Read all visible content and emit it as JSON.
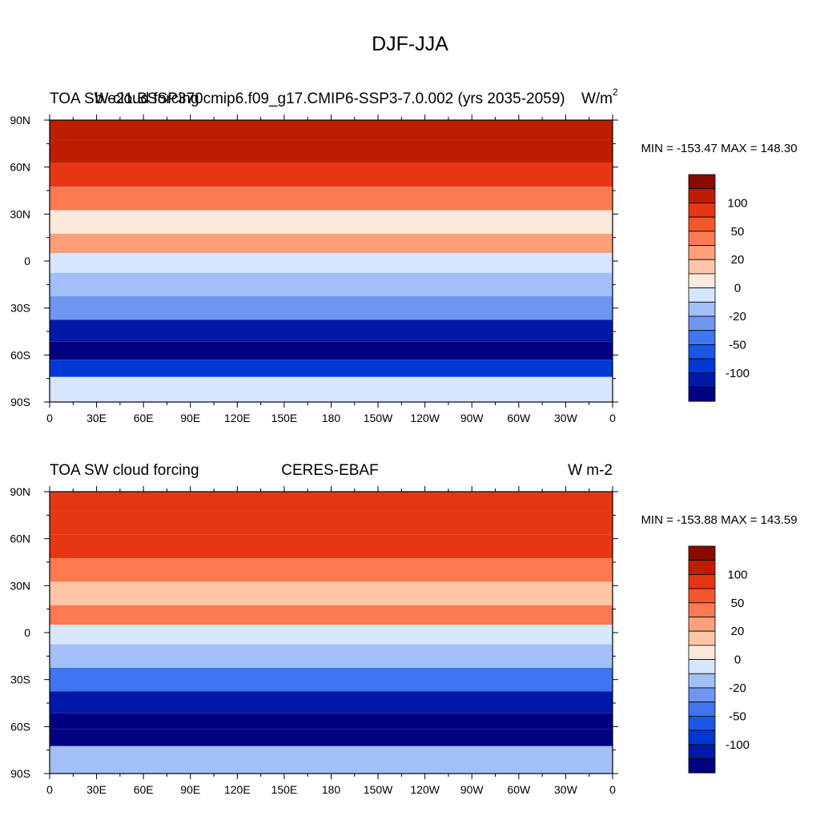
{
  "main_title": "DJF-JJA",
  "panels": [
    {
      "left_title": "TOA SW cloud forcing",
      "center_title": "b.e21.BSSP370cmip6.f09_g17.CMIP6-SSP3-7.0.002 (yrs 2035-2059)",
      "units_main": "W/m",
      "units_sup": "2",
      "minmax": "MIN = -153.47 MAX = 148.30"
    },
    {
      "left_title": "TOA SW cloud forcing",
      "center_title": "CERES-EBAF",
      "units_main": "W m-2",
      "units_sup": "",
      "minmax": "MIN = -153.88 MAX = 143.59"
    }
  ],
  "chart_data": [
    {
      "type": "heatmap",
      "title": "TOA SW cloud forcing",
      "subtitle": "b.e21.BSSP370cmip6.f09_g17.CMIP6-SSP3-7.0.002 (yrs 2035-2059)",
      "units": "W/m^2",
      "min": -153.47,
      "max": 148.3,
      "x_ticks": [
        "0",
        "30E",
        "60E",
        "90E",
        "120E",
        "150E",
        "180",
        "150W",
        "120W",
        "90W",
        "60W",
        "30W",
        "0"
      ],
      "y_ticks": [
        "90N",
        "60N",
        "30N",
        "0",
        "30S",
        "60S",
        "90S"
      ],
      "xlim": [
        0,
        360
      ],
      "ylim": [
        -90,
        90
      ],
      "colorbar_levels": [
        -150,
        -100,
        -75,
        -50,
        -40,
        -30,
        -20,
        -10,
        0,
        10,
        20,
        30,
        40,
        50,
        75,
        100,
        150
      ],
      "colorbar_labels": [
        "100",
        "50",
        "20",
        "0",
        "-20",
        "-50",
        "-100"
      ],
      "zonal_mean_approx": [
        {
          "lat": 85,
          "value": 100
        },
        {
          "lat": 70,
          "value": 90
        },
        {
          "lat": 55,
          "value": 75
        },
        {
          "lat": 40,
          "value": 40
        },
        {
          "lat": 25,
          "value": 10
        },
        {
          "lat": 10,
          "value": 30
        },
        {
          "lat": 0,
          "value": 0
        },
        {
          "lat": -15,
          "value": -15
        },
        {
          "lat": -30,
          "value": -20
        },
        {
          "lat": -45,
          "value": -75
        },
        {
          "lat": -58,
          "value": -110
        },
        {
          "lat": -68,
          "value": -60
        },
        {
          "lat": -80,
          "value": 0
        }
      ]
    },
    {
      "type": "heatmap",
      "title": "TOA SW cloud forcing",
      "subtitle": "CERES-EBAF",
      "units": "W m-2",
      "min": -153.88,
      "max": 143.59,
      "x_ticks": [
        "0",
        "30E",
        "60E",
        "90E",
        "120E",
        "150E",
        "180",
        "150W",
        "120W",
        "90W",
        "60W",
        "30W",
        "0"
      ],
      "y_ticks": [
        "90N",
        "60N",
        "30N",
        "0",
        "30S",
        "60S",
        "90S"
      ],
      "xlim": [
        0,
        360
      ],
      "ylim": [
        -90,
        90
      ],
      "colorbar_levels": [
        -150,
        -100,
        -75,
        -50,
        -40,
        -30,
        -20,
        -10,
        0,
        10,
        20,
        30,
        40,
        50,
        75,
        100,
        150
      ],
      "colorbar_labels": [
        "100",
        "50",
        "20",
        "0",
        "-20",
        "-50",
        "-100"
      ],
      "zonal_mean_approx": [
        {
          "lat": 85,
          "value": 60
        },
        {
          "lat": 70,
          "value": 70
        },
        {
          "lat": 55,
          "value": 75
        },
        {
          "lat": 40,
          "value": 40
        },
        {
          "lat": 25,
          "value": 20
        },
        {
          "lat": 10,
          "value": 40
        },
        {
          "lat": 0,
          "value": 0
        },
        {
          "lat": -15,
          "value": -15
        },
        {
          "lat": -30,
          "value": -35
        },
        {
          "lat": -45,
          "value": -75
        },
        {
          "lat": -58,
          "value": -110
        },
        {
          "lat": -65,
          "value": -130
        },
        {
          "lat": -80,
          "value": -10
        }
      ]
    }
  ],
  "colors": {
    "palette": [
      "#000080",
      "#0019a8",
      "#0038d6",
      "#1a58e6",
      "#3f75f0",
      "#6f97f2",
      "#a3bff7",
      "#d6e6fd",
      "#fde9db",
      "#fdc6a6",
      "#fda07a",
      "#fb7a4f",
      "#f5562d",
      "#e63613",
      "#be1e00",
      "#8b0a00"
    ]
  }
}
